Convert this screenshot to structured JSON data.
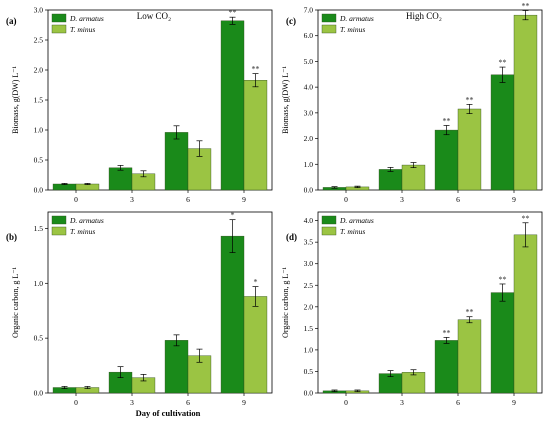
{
  "colors": {
    "s0": "#1a8a1a",
    "s1": "#9bc443",
    "frame": "#000000",
    "error": "#000000"
  },
  "legend": [
    "D. armatus",
    "T. minus"
  ],
  "x_axis_title": "Day of cultivation",
  "chart_data": [
    {
      "tag": "(a)",
      "title": "Low CO₂",
      "type": "bar",
      "ylabel": "Biomass, g(DW) L⁻¹",
      "categories": [
        "0",
        "3",
        "6",
        "9"
      ],
      "ylim": [
        0,
        3.0
      ],
      "yticks": [
        "0.0",
        "0.5",
        "1.0",
        "1.5",
        "2.0",
        "2.5",
        "3.0"
      ],
      "legend_position": "top-left",
      "series": [
        {
          "name": "D. armatus",
          "values": [
            0.1,
            0.37,
            0.96,
            2.82
          ],
          "errors": [
            0.01,
            0.04,
            0.11,
            0.06
          ],
          "sig": [
            "",
            "",
            "",
            "**"
          ]
        },
        {
          "name": "T. minus",
          "values": [
            0.1,
            0.27,
            0.69,
            1.83
          ],
          "errors": [
            0.01,
            0.05,
            0.13,
            0.11
          ],
          "sig": [
            "",
            "",
            "",
            "**"
          ]
        }
      ]
    },
    {
      "tag": "(c)",
      "title": "High CO₂",
      "type": "bar",
      "ylabel": "Biomass, g(DW) L⁻¹",
      "categories": [
        "0",
        "3",
        "6",
        "9"
      ],
      "ylim": [
        0,
        7.0
      ],
      "yticks": [
        "0.0",
        "1.0",
        "2.0",
        "3.0",
        "4.0",
        "5.0",
        "6.0",
        "7.0"
      ],
      "legend_position": "top-left",
      "series": [
        {
          "name": "D. armatus",
          "values": [
            0.1,
            0.8,
            2.33,
            4.48
          ],
          "errors": [
            0.03,
            0.08,
            0.18,
            0.3
          ],
          "sig": [
            "",
            "",
            "**",
            "**"
          ]
        },
        {
          "name": "T. minus",
          "values": [
            0.12,
            0.97,
            3.15,
            6.8
          ],
          "errors": [
            0.03,
            0.1,
            0.18,
            0.18
          ],
          "sig": [
            "",
            "",
            "**",
            "**"
          ]
        }
      ]
    },
    {
      "tag": "(b)",
      "title": "",
      "type": "bar",
      "ylabel": "Organic carbon, g L⁻¹",
      "categories": [
        "0",
        "3",
        "6",
        "9"
      ],
      "ylim": [
        0,
        1.65
      ],
      "yticks": [
        "0.0",
        "0.5",
        "1.0",
        "1.5"
      ],
      "legend_position": "top-left",
      "series": [
        {
          "name": "D. armatus",
          "values": [
            0.05,
            0.19,
            0.48,
            1.43
          ],
          "errors": [
            0.01,
            0.05,
            0.05,
            0.15
          ],
          "sig": [
            "",
            "",
            "",
            "*"
          ]
        },
        {
          "name": "T. minus",
          "values": [
            0.05,
            0.14,
            0.34,
            0.88
          ],
          "errors": [
            0.01,
            0.03,
            0.06,
            0.09
          ],
          "sig": [
            "",
            "",
            "",
            "*"
          ]
        }
      ]
    },
    {
      "tag": "(d)",
      "title": "",
      "type": "bar",
      "ylabel": "Organic carbon, g L⁻¹",
      "categories": [
        "0",
        "3",
        "6",
        "9"
      ],
      "ylim": [
        0,
        4.2
      ],
      "yticks": [
        "0.0",
        "0.5",
        "1.0",
        "1.5",
        "2.0",
        "2.5",
        "3.0",
        "3.5",
        "4.0"
      ],
      "legend_position": "top-left",
      "series": [
        {
          "name": "D. armatus",
          "values": [
            0.05,
            0.45,
            1.22,
            2.33
          ],
          "errors": [
            0.02,
            0.07,
            0.07,
            0.2
          ],
          "sig": [
            "",
            "",
            "**",
            "**"
          ]
        },
        {
          "name": "T. minus",
          "values": [
            0.05,
            0.48,
            1.7,
            3.67
          ],
          "errors": [
            0.02,
            0.06,
            0.07,
            0.28
          ],
          "sig": [
            "",
            "",
            "**",
            "**"
          ]
        }
      ]
    }
  ]
}
